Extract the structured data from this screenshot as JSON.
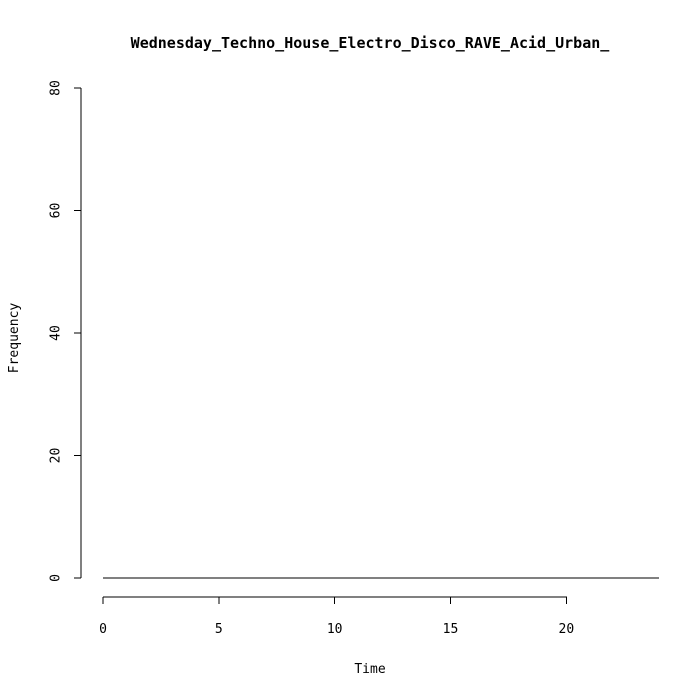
{
  "chart_data": {
    "type": "line",
    "title": "Wednesday_Techno_House_Electro_Disco_RAVE_Acid_Urban_",
    "xlabel": "Time",
    "ylabel": "Frequency",
    "xlim": [
      0,
      24
    ],
    "ylim": [
      0,
      80
    ],
    "x_ticks": [
      "0",
      "5",
      "10",
      "15",
      "20"
    ],
    "y_ticks": [
      "0",
      "20",
      "40",
      "60",
      "80"
    ],
    "grid": false,
    "legend": "none",
    "series": [
      {
        "x": [
          0,
          24
        ],
        "values": [
          0,
          0
        ],
        "color": "#000000"
      }
    ]
  }
}
